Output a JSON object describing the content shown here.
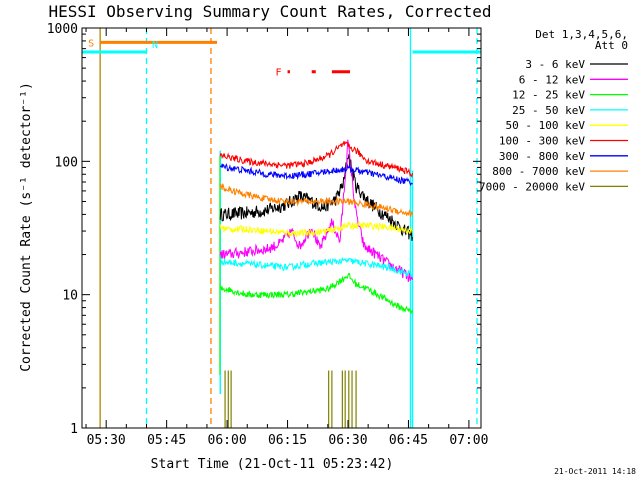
{
  "chart_data": {
    "type": "line",
    "title": "HESSI Observing Summary Count Rates, Corrected",
    "xlabel": "Start Time (21-Oct-11 05:23:42)",
    "ylabel": "Corrected Count Rate (s⁻¹ detector⁻¹)",
    "yscale": "log",
    "ylim": [
      1,
      1000
    ],
    "xlim_minutes": [
      324.0,
      423.0
    ],
    "x_tick_labels": [
      "05:30",
      "05:45",
      "06:00",
      "06:15",
      "06:30",
      "06:45",
      "07:00"
    ],
    "x_tick_minutes": [
      330,
      345,
      360,
      375,
      390,
      405,
      420
    ],
    "y_tick_labels": [
      "1",
      "10",
      "100",
      "1000"
    ],
    "y_tick_values": [
      1,
      10,
      100,
      1000
    ],
    "legend_header": [
      "Det 1,3,4,5,6,",
      "Att 0"
    ],
    "legend_position": "right",
    "timestamp": "21-Oct-2011 14:18",
    "x_units": "minutes of day",
    "flag_bars": {
      "S": {
        "label": "S",
        "color": "#ff8000",
        "y": 780,
        "ranges": [
          [
            328.5,
            357.5
          ]
        ]
      },
      "N": {
        "label": "N",
        "color": "#00ffff",
        "y": 660,
        "ranges": [
          [
            324.0,
            340.0
          ],
          [
            406.0,
            423.0
          ]
        ]
      },
      "F": {
        "label": "F",
        "color": "#ff0000",
        "y": 470,
        "ranges": [
          [
            375.0,
            375.6
          ],
          [
            381.0,
            382.0
          ],
          [
            386.0,
            390.5
          ]
        ]
      }
    },
    "vlines": [
      {
        "x": 328.5,
        "color": "#b08800",
        "dash": false
      },
      {
        "x": 340.0,
        "color": "#00ffff",
        "dash": true
      },
      {
        "x": 356.0,
        "color": "#ff8000",
        "dash": true
      },
      {
        "x": 405.5,
        "color": "#00ffff",
        "dash": false
      },
      {
        "x": 422.0,
        "color": "#00ffff",
        "dash": true
      }
    ],
    "series": [
      {
        "name": "3 - 6 keV",
        "color": "#000000",
        "x": [
          358.3,
          360,
          365,
          370,
          375,
          378,
          381,
          384,
          387,
          389,
          390,
          392,
          395,
          398,
          401,
          404,
          406
        ],
        "values": [
          40,
          40,
          41,
          43,
          48,
          55,
          50,
          45,
          52,
          70,
          115,
          65,
          50,
          42,
          36,
          30,
          28
        ]
      },
      {
        "name": "6 - 12 keV",
        "color": "#ff00ff",
        "x": [
          358.3,
          360,
          365,
          370,
          373,
          376,
          378,
          381,
          383,
          386,
          388,
          390,
          392,
          394,
          397,
          400,
          403,
          406
        ],
        "values": [
          20,
          20,
          21,
          22,
          24,
          30,
          23,
          32,
          22,
          35,
          25,
          140,
          40,
          23,
          20,
          17,
          15,
          13
        ]
      },
      {
        "name": "12 - 25 keV",
        "color": "#00ff00",
        "x": [
          358.3,
          360,
          365,
          370,
          375,
          380,
          385,
          390,
          392,
          395,
          400,
          403,
          406
        ],
        "values": [
          11,
          11,
          10,
          10,
          10,
          10.5,
          11,
          14,
          12,
          11,
          9,
          8,
          7.5
        ]
      },
      {
        "name": "25 - 50 keV",
        "color": "#00ffff",
        "x": [
          358.3,
          360,
          365,
          370,
          375,
          380,
          385,
          390,
          395,
          400,
          403,
          406
        ],
        "values": [
          18,
          17.5,
          17,
          16.5,
          16,
          17,
          17.5,
          18,
          17,
          16,
          15,
          14
        ]
      },
      {
        "name": "50 - 100 keV",
        "color": "#ffff00",
        "x": [
          358.3,
          360,
          365,
          370,
          375,
          380,
          385,
          390,
          395,
          400,
          403,
          406
        ],
        "values": [
          32,
          31,
          31,
          30,
          29,
          29,
          30,
          33,
          33,
          32,
          31,
          30
        ]
      },
      {
        "name": "100 - 300 keV",
        "color": "#ff0000",
        "x": [
          358.3,
          360,
          365,
          370,
          375,
          380,
          385,
          389,
          392,
          395,
          400,
          403,
          406
        ],
        "values": [
          110,
          108,
          100,
          96,
          93,
          97,
          110,
          135,
          120,
          100,
          92,
          88,
          80
        ]
      },
      {
        "name": "300 - 800 keV",
        "color": "#0000ff",
        "x": [
          358.3,
          360,
          365,
          370,
          375,
          380,
          385,
          390,
          395,
          400,
          403,
          406
        ],
        "values": [
          92,
          90,
          85,
          80,
          78,
          80,
          84,
          88,
          82,
          76,
          72,
          70
        ]
      },
      {
        "name": "800 - 7000 keV",
        "color": "#ff8000",
        "x": [
          358.3,
          360,
          365,
          370,
          375,
          380,
          385,
          390,
          395,
          400,
          403,
          406
        ],
        "values": [
          65,
          62,
          56,
          52,
          50,
          50,
          50,
          50,
          47,
          44,
          42,
          40
        ]
      },
      {
        "name": "7000 - 20000 keV",
        "color": "#808000",
        "x": [],
        "values": []
      }
    ]
  }
}
